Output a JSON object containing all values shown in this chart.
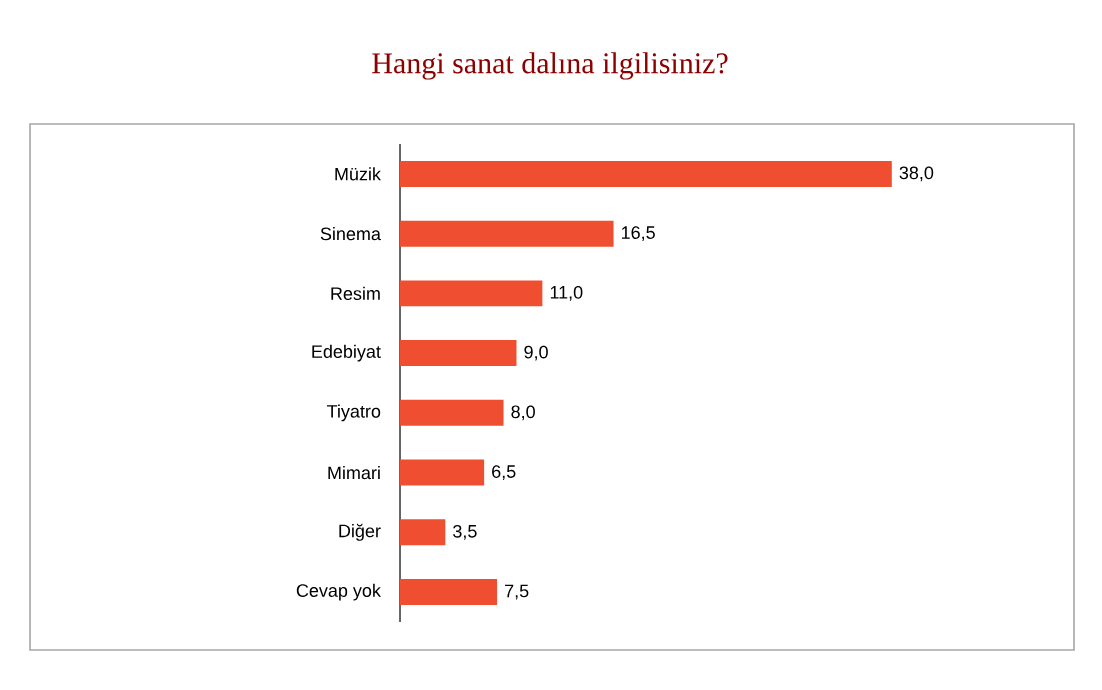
{
  "chart_data": {
    "type": "bar",
    "orientation": "horizontal",
    "title": "Hangi sanat dalına ilgilisiniz?",
    "categories": [
      "Müzik",
      "Sinema",
      "Resim",
      "Edebiyat",
      "Tiyatro",
      "Mimari",
      "Diğer",
      "Cevap yok"
    ],
    "values": [
      38.0,
      16.5,
      11.0,
      9.0,
      8.0,
      6.5,
      3.5,
      7.5
    ],
    "value_labels": [
      "38,0",
      "16,5",
      "11,0",
      "9,0",
      "8,0",
      "6,5",
      "3,5",
      "7,5"
    ],
    "color": "#f04e30"
  }
}
